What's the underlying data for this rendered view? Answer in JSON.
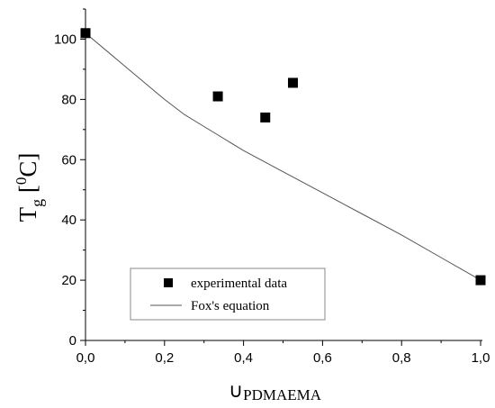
{
  "chart_data": {
    "type": "scatter",
    "xlabel": {
      "symbol": "∪",
      "subscript": "PDMAEMA"
    },
    "ylabel": {
      "main": "T",
      "subscript": "g",
      "open": " [",
      "sup": "0",
      "unit": "C]"
    },
    "xlim": [
      0.0,
      1.0
    ],
    "ylim": [
      0,
      110
    ],
    "x_ticks": [
      0.0,
      0.2,
      0.4,
      0.6,
      0.8,
      1.0
    ],
    "x_tick_labels": [
      "0,0",
      "0,2",
      "0,4",
      "0,6",
      "0,8",
      "1,0"
    ],
    "y_ticks": [
      0,
      20,
      40,
      60,
      80,
      100
    ],
    "y_tick_labels": [
      "0",
      "20",
      "40",
      "60",
      "80",
      "100"
    ],
    "grid": false,
    "legend_position": "bottom-left",
    "series": [
      {
        "name": "experimental data",
        "kind": "scatter",
        "color": "#000000",
        "x": [
          0.0,
          0.335,
          0.455,
          0.525,
          1.0
        ],
        "y": [
          102,
          81,
          74,
          85.5,
          20
        ]
      },
      {
        "name": "Fox's equation",
        "kind": "line",
        "color": "#555555",
        "x": [
          0.0,
          0.1,
          0.2,
          0.25,
          0.3,
          0.4,
          0.5,
          0.6,
          0.7,
          0.8,
          0.9,
          1.0
        ],
        "y": [
          102,
          91,
          80,
          75,
          71,
          63,
          56,
          49,
          42,
          35,
          27.5,
          20
        ]
      }
    ]
  }
}
